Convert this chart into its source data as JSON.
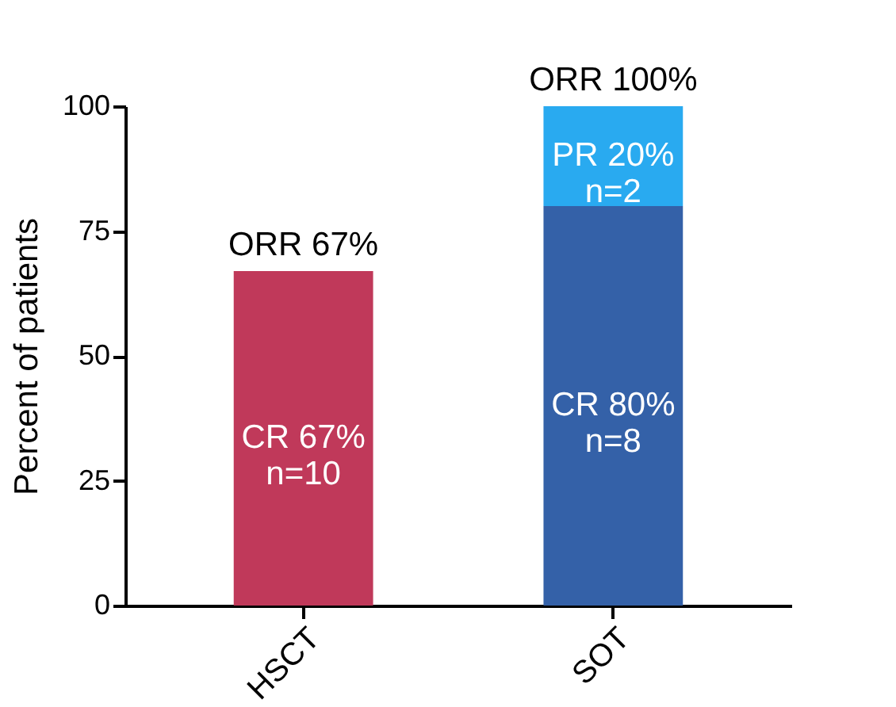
{
  "chart_data": {
    "type": "bar",
    "stacked": true,
    "ylabel": "Percent of patients",
    "categories": [
      "HSCT",
      "SOT"
    ],
    "series": [
      {
        "colors": [
          "#c0395a",
          "#3461a8"
        ],
        "values": [
          67,
          80
        ],
        "value_labels": [
          "CR 67%\nn=10",
          "CR 80%\nn=8"
        ]
      },
      {
        "color": "#29aaf0",
        "values": [
          null,
          20
        ],
        "value_labels": [
          null,
          "PR 20%\nn=2"
        ]
      }
    ],
    "totals": [
      "ORR 67%",
      "ORR 100%"
    ],
    "ylim": [
      0,
      100
    ],
    "yticks": [
      0,
      25,
      50,
      75,
      100
    ],
    "grid": false
  }
}
